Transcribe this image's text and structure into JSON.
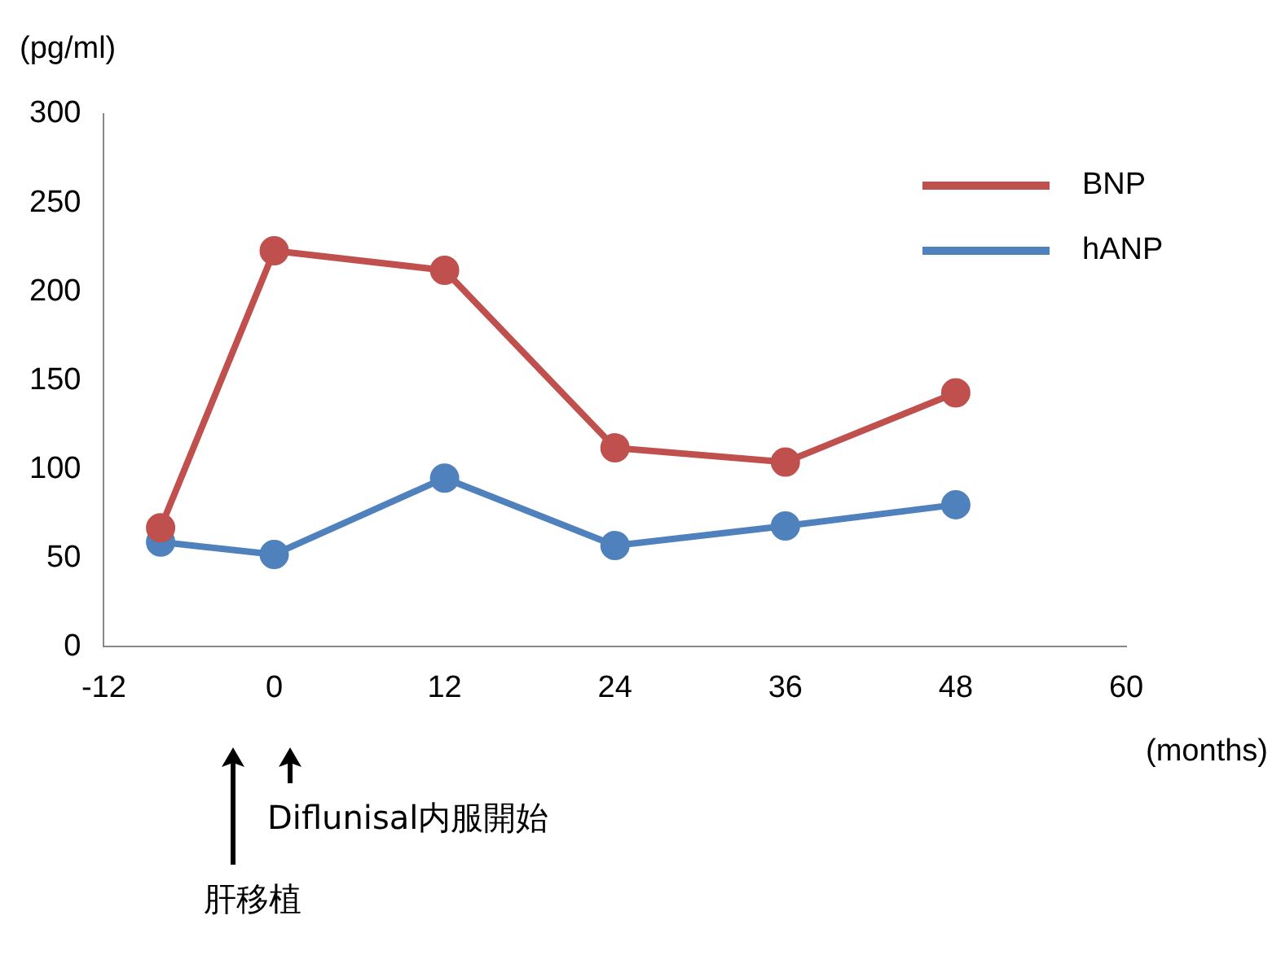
{
  "chart_data": {
    "type": "line",
    "xlabel": "(months)",
    "ylabel": "(pg/ml)",
    "x": [
      -8,
      0,
      12,
      24,
      36,
      48
    ],
    "series": [
      {
        "name": "BNP",
        "color": "#c0504d",
        "values": [
          67,
          223,
          212,
          112,
          104,
          143
        ]
      },
      {
        "name": "hANP",
        "color": "#4f81bd",
        "values": [
          59,
          52,
          95,
          57,
          68,
          80
        ]
      }
    ],
    "xlim": [
      -12,
      60
    ],
    "xticks": [
      -12,
      0,
      12,
      24,
      36,
      48,
      60
    ],
    "ylim": [
      0,
      300
    ],
    "yticks": [
      0,
      50,
      100,
      150,
      200,
      250,
      300
    ],
    "grid": false,
    "legend": "top right",
    "marker": "circle",
    "line_style": "solid",
    "annotations": [
      "Diflunisal内服開始",
      "肝移植"
    ]
  }
}
